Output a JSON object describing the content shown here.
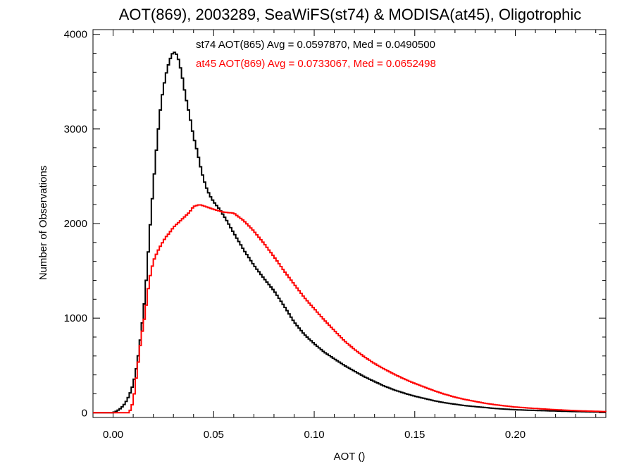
{
  "chart_data": {
    "type": "line",
    "title": "AOT(869), 2003289, SeaWiFS(st74) & MODISA(at45), Oligotrophic",
    "xlabel": "AOT ()",
    "ylabel": "Number of Observations",
    "xlim": [
      -0.01,
      0.245
    ],
    "ylim": [
      -50,
      4050
    ],
    "x_ticks": [
      0.0,
      0.05,
      0.1,
      0.15,
      0.2
    ],
    "x_tick_labels": [
      "0.00",
      "0.05",
      "0.10",
      "0.15",
      "0.20"
    ],
    "y_ticks": [
      0,
      1000,
      2000,
      3000,
      4000
    ],
    "y_tick_labels": [
      "0",
      "1000",
      "2000",
      "3000",
      "4000"
    ],
    "grid": false,
    "legend_position": "top-center",
    "series": [
      {
        "name": "st74 AOT(865) Avg = 0.0597870, Med = 0.0490500",
        "color": "#000000",
        "points": [
          [
            -0.01,
            0
          ],
          [
            0.0,
            0
          ],
          [
            0.002,
            20
          ],
          [
            0.004,
            50
          ],
          [
            0.006,
            100
          ],
          [
            0.008,
            180
          ],
          [
            0.01,
            300
          ],
          [
            0.012,
            520
          ],
          [
            0.014,
            850
          ],
          [
            0.016,
            1250
          ],
          [
            0.018,
            1850
          ],
          [
            0.02,
            2400
          ],
          [
            0.022,
            2900
          ],
          [
            0.024,
            3300
          ],
          [
            0.026,
            3550
          ],
          [
            0.028,
            3720
          ],
          [
            0.03,
            3820
          ],
          [
            0.032,
            3780
          ],
          [
            0.034,
            3600
          ],
          [
            0.036,
            3350
          ],
          [
            0.038,
            3150
          ],
          [
            0.04,
            2920
          ],
          [
            0.042,
            2750
          ],
          [
            0.044,
            2550
          ],
          [
            0.046,
            2400
          ],
          [
            0.048,
            2300
          ],
          [
            0.05,
            2230
          ],
          [
            0.053,
            2150
          ],
          [
            0.056,
            2050
          ],
          [
            0.06,
            1900
          ],
          [
            0.065,
            1720
          ],
          [
            0.07,
            1560
          ],
          [
            0.075,
            1420
          ],
          [
            0.08,
            1290
          ],
          [
            0.085,
            1130
          ],
          [
            0.09,
            960
          ],
          [
            0.095,
            830
          ],
          [
            0.1,
            730
          ],
          [
            0.105,
            640
          ],
          [
            0.11,
            570
          ],
          [
            0.115,
            500
          ],
          [
            0.12,
            440
          ],
          [
            0.125,
            380
          ],
          [
            0.13,
            330
          ],
          [
            0.135,
            280
          ],
          [
            0.14,
            240
          ],
          [
            0.145,
            205
          ],
          [
            0.15,
            175
          ],
          [
            0.155,
            150
          ],
          [
            0.16,
            125
          ],
          [
            0.165,
            105
          ],
          [
            0.17,
            90
          ],
          [
            0.175,
            75
          ],
          [
            0.18,
            65
          ],
          [
            0.185,
            55
          ],
          [
            0.19,
            45
          ],
          [
            0.195,
            38
          ],
          [
            0.2,
            32
          ],
          [
            0.21,
            24
          ],
          [
            0.22,
            18
          ],
          [
            0.23,
            12
          ],
          [
            0.24,
            8
          ],
          [
            0.245,
            6
          ]
        ]
      },
      {
        "name": "at45 AOT(869) Avg = 0.0733067, Med = 0.0652498",
        "color": "#ff0000",
        "points": [
          [
            -0.01,
            0
          ],
          [
            0.008,
            0
          ],
          [
            0.009,
            50
          ],
          [
            0.01,
            120
          ],
          [
            0.011,
            280
          ],
          [
            0.012,
            450
          ],
          [
            0.013,
            620
          ],
          [
            0.014,
            800
          ],
          [
            0.016,
            1050
          ],
          [
            0.018,
            1400
          ],
          [
            0.02,
            1600
          ],
          [
            0.022,
            1700
          ],
          [
            0.024,
            1780
          ],
          [
            0.026,
            1850
          ],
          [
            0.028,
            1900
          ],
          [
            0.03,
            1960
          ],
          [
            0.032,
            2000
          ],
          [
            0.035,
            2060
          ],
          [
            0.038,
            2120
          ],
          [
            0.04,
            2180
          ],
          [
            0.043,
            2200
          ],
          [
            0.046,
            2180
          ],
          [
            0.05,
            2150
          ],
          [
            0.055,
            2120
          ],
          [
            0.06,
            2110
          ],
          [
            0.065,
            2030
          ],
          [
            0.07,
            1920
          ],
          [
            0.075,
            1790
          ],
          [
            0.08,
            1650
          ],
          [
            0.085,
            1500
          ],
          [
            0.09,
            1360
          ],
          [
            0.095,
            1220
          ],
          [
            0.1,
            1100
          ],
          [
            0.105,
            980
          ],
          [
            0.11,
            870
          ],
          [
            0.115,
            760
          ],
          [
            0.12,
            670
          ],
          [
            0.125,
            590
          ],
          [
            0.13,
            520
          ],
          [
            0.135,
            460
          ],
          [
            0.14,
            405
          ],
          [
            0.145,
            355
          ],
          [
            0.15,
            310
          ],
          [
            0.155,
            270
          ],
          [
            0.16,
            230
          ],
          [
            0.165,
            195
          ],
          [
            0.17,
            165
          ],
          [
            0.175,
            140
          ],
          [
            0.18,
            120
          ],
          [
            0.185,
            100
          ],
          [
            0.19,
            85
          ],
          [
            0.195,
            72
          ],
          [
            0.2,
            60
          ],
          [
            0.21,
            45
          ],
          [
            0.22,
            32
          ],
          [
            0.23,
            22
          ],
          [
            0.24,
            15
          ],
          [
            0.245,
            12
          ]
        ]
      }
    ]
  }
}
